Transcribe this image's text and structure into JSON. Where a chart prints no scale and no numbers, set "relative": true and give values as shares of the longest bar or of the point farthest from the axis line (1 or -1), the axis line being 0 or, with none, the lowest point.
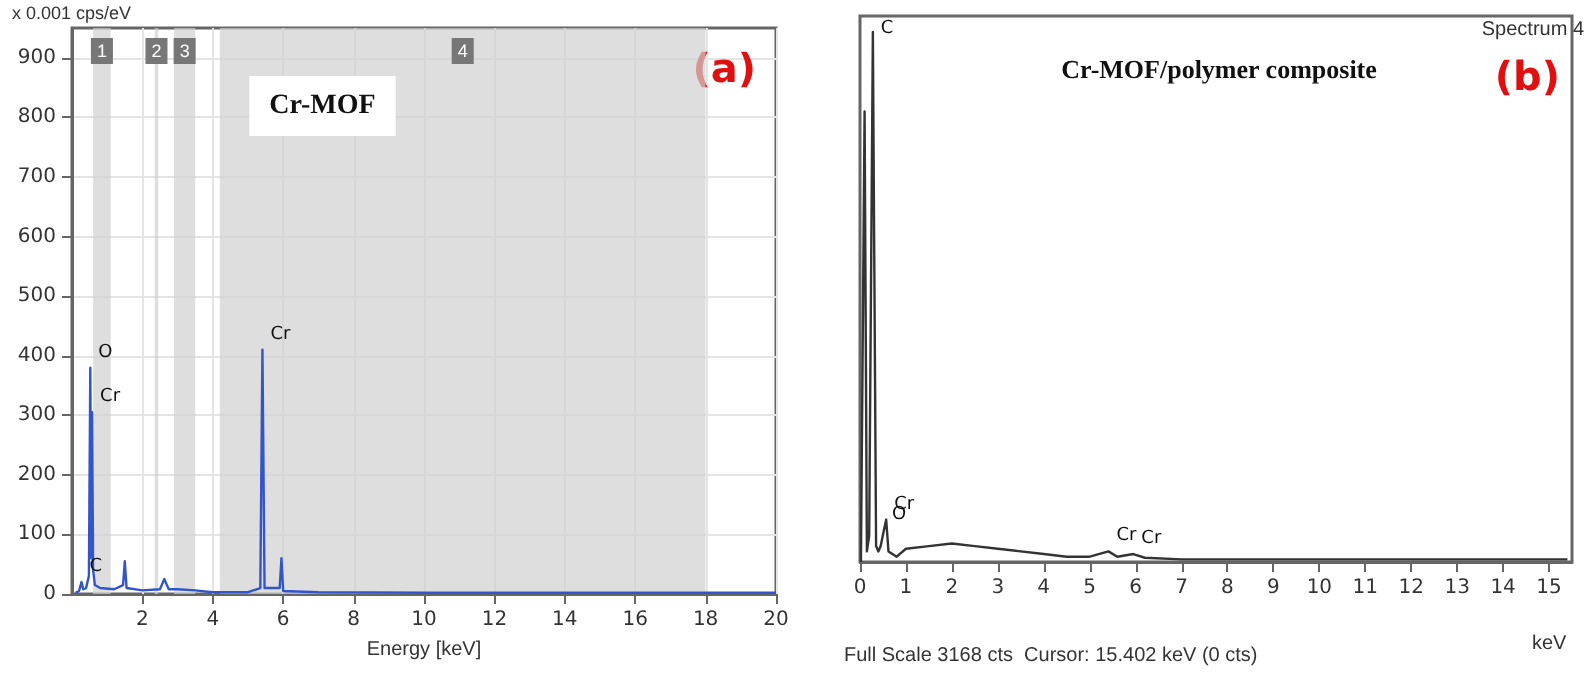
{
  "chart_data": [
    {
      "type": "line",
      "title": "Cr-MOF",
      "xlabel": "Energy [keV]",
      "ylabel": "x 0.001 cps/eV",
      "annotations": [
        "(a)",
        {
          "text": "C",
          "x": 0.27,
          "y": 20
        },
        {
          "text": "O",
          "x": 0.52,
          "y": 380
        },
        {
          "text": "Cr",
          "x": 0.57,
          "y": 305
        },
        {
          "text": "Cr",
          "x": 5.41,
          "y": 410
        }
      ],
      "series": [
        {
          "color": "#3355cc",
          "x": [
            0.1,
            0.2,
            0.27,
            0.32,
            0.4,
            0.48,
            0.52,
            0.55,
            0.57,
            0.6,
            0.65,
            0.8,
            1.2,
            1.45,
            1.5,
            1.55,
            2,
            2.5,
            2.62,
            2.75,
            3,
            3.5,
            4,
            5,
            5.35,
            5.41,
            5.47,
            5.9,
            5.95,
            6.0,
            7,
            10,
            15,
            20
          ],
          "values": [
            2,
            5,
            20,
            8,
            10,
            30,
            380,
            60,
            305,
            40,
            15,
            10,
            8,
            15,
            55,
            10,
            6,
            8,
            25,
            8,
            8,
            6,
            3,
            3,
            10,
            410,
            10,
            10,
            60,
            5,
            3,
            2,
            2,
            2
          ]
        }
      ],
      "bands": [
        {
          "axis": "x",
          "from": 0.6,
          "to": 1.1,
          "label": "1",
          "color": "#d0d0d0"
        },
        {
          "axis": "x",
          "from": 2.35,
          "to": 2.45,
          "label": "2",
          "color": "#d0d0d0"
        },
        {
          "axis": "x",
          "from": 2.9,
          "to": 3.5,
          "label": "3",
          "color": "#d0d0d0"
        },
        {
          "axis": "x",
          "from": 4.2,
          "to": 18,
          "label": "4",
          "color": "#d0d0d0"
        }
      ],
      "xlim": [
        0,
        20
      ],
      "xticks": [
        2,
        4,
        6,
        8,
        10,
        12,
        14,
        16,
        18,
        20
      ],
      "ylim": [
        0,
        950
      ],
      "yticks": [
        0,
        100,
        200,
        300,
        400,
        500,
        600,
        700,
        800,
        900
      ],
      "grid": true,
      "marker": "none",
      "line_style": "solid"
    },
    {
      "type": "line",
      "title": "Cr-MOF/polymer composite",
      "xlabel": "keV",
      "relative": true,
      "annotations": [
        "(b)",
        "Spectrum 4",
        "Full Scale 3168 cts  Cursor: 15.402 keV (0 cts)",
        {
          "text": "C",
          "x": 0.28,
          "y": 1
        },
        {
          "text": "O",
          "x": 0.52,
          "y": 0.06
        },
        {
          "text": "Cr",
          "x": 0.57,
          "y": 0.08
        },
        {
          "text": "Cr",
          "x": 5.41,
          "y": 0.02
        },
        {
          "text": "Cr",
          "x": 5.95,
          "y": 0.015
        }
      ],
      "series": [
        {
          "color": "#333333",
          "x": [
            0.02,
            0.1,
            0.15,
            0.2,
            0.28,
            0.35,
            0.4,
            0.45,
            0.52,
            0.57,
            0.62,
            0.8,
            1,
            1.5,
            2,
            2.5,
            3,
            3.5,
            4,
            4.5,
            5,
            5.41,
            5.6,
            5.95,
            6.2,
            7,
            8,
            10,
            12,
            15.4
          ],
          "values": [
            0,
            0.85,
            0.02,
            0.05,
            1,
            0.03,
            0.02,
            0.03,
            0.06,
            0.08,
            0.02,
            0.01,
            0.025,
            0.03,
            0.035,
            0.03,
            0.025,
            0.02,
            0.015,
            0.01,
            0.01,
            0.02,
            0.01,
            0.015,
            0.008,
            0.005,
            0.005,
            0.005,
            0.005,
            0.005
          ]
        }
      ],
      "xlim": [
        0,
        15.5
      ],
      "xticks": [
        0,
        1,
        2,
        3,
        4,
        5,
        6,
        7,
        8,
        9,
        10,
        11,
        12,
        13,
        14,
        15
      ],
      "grid": false,
      "marker": "none",
      "line_style": "solid"
    }
  ]
}
